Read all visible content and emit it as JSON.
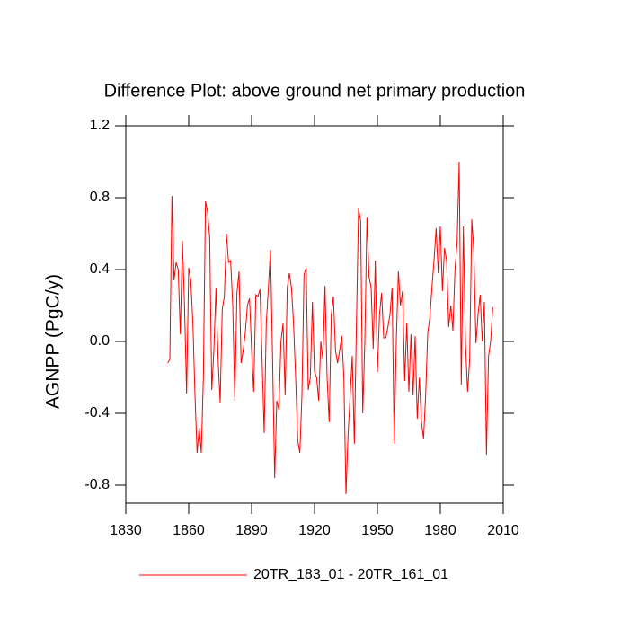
{
  "chart_data": {
    "type": "line",
    "title": "Difference Plot: above ground net primary production",
    "y_label": "AGNPP  (PgC/y)",
    "xlim": [
      1830,
      2010
    ],
    "xticks": [
      1830,
      1860,
      1890,
      1920,
      1950,
      1980,
      2010
    ],
    "ylim": [
      -0.9,
      1.2
    ],
    "yticks": [
      -0.8,
      -0.4,
      {
        "value": 0,
        "label": "0.0"
      },
      0.4,
      0.8,
      1.2
    ],
    "x": [
      1850,
      1851,
      1852,
      1853,
      1854,
      1855,
      1856,
      1857,
      1858,
      1859,
      1860,
      1861,
      1862,
      1863,
      1864,
      1865,
      1866,
      1867,
      1868,
      1869,
      1870,
      1871,
      1872,
      1873,
      1874,
      1875,
      1876,
      1877,
      1878,
      1879,
      1880,
      1881,
      1882,
      1883,
      1884,
      1885,
      1886,
      1887,
      1888,
      1889,
      1890,
      1891,
      1892,
      1893,
      1894,
      1895,
      1896,
      1897,
      1898,
      1899,
      1900,
      1901,
      1902,
      1903,
      1904,
      1905,
      1906,
      1907,
      1908,
      1909,
      1910,
      1911,
      1912,
      1913,
      1914,
      1915,
      1916,
      1917,
      1918,
      1919,
      1920,
      1921,
      1922,
      1923,
      1924,
      1925,
      1926,
      1927,
      1928,
      1929,
      1930,
      1931,
      1932,
      1933,
      1934,
      1935,
      1936,
      1937,
      1938,
      1939,
      1940,
      1941,
      1942,
      1943,
      1944,
      1945,
      1946,
      1947,
      1948,
      1949,
      1950,
      1951,
      1952,
      1953,
      1954,
      1955,
      1956,
      1957,
      1958,
      1959,
      1960,
      1961,
      1962,
      1963,
      1964,
      1965,
      1966,
      1967,
      1968,
      1969,
      1970,
      1971,
      1972,
      1973,
      1974,
      1975,
      1976,
      1977,
      1978,
      1979,
      1980,
      1981,
      1982,
      1983,
      1984,
      1985,
      1986,
      1987,
      1988,
      1989,
      1990,
      1991,
      1992,
      1993,
      1994,
      1995,
      1996,
      1997,
      1998,
      1999,
      2000,
      2001,
      2002,
      2003,
      2004,
      2005
    ],
    "series": [
      {
        "name": "20TR_183_01 - 20TR_161_01",
        "color": "#ff0000",
        "values": [
          -0.12,
          -0.1,
          0.81,
          0.34,
          0.44,
          0.4,
          0.04,
          0.56,
          0.2,
          -0.29,
          0.41,
          0.34,
          0.1,
          -0.3,
          -0.62,
          -0.48,
          -0.62,
          -0.2,
          0.78,
          0.72,
          0.58,
          -0.27,
          -0.05,
          0.3,
          -0.1,
          -0.34,
          0.18,
          0.25,
          0.6,
          0.44,
          0.45,
          0.2,
          -0.33,
          0.27,
          0.39,
          -0.12,
          -0.05,
          0.05,
          0.2,
          0.24,
          -0.05,
          -0.28,
          0.26,
          0.25,
          0.29,
          -0.1,
          -0.51,
          0.1,
          0.3,
          0.51,
          -0.1,
          -0.76,
          -0.33,
          -0.38,
          0.0,
          0.1,
          -0.3,
          0.3,
          0.38,
          0.3,
          0.1,
          -0.2,
          -0.55,
          -0.62,
          -0.3,
          0.37,
          0.41,
          -0.27,
          -0.2,
          0.22,
          -0.17,
          -0.2,
          -0.33,
          0.0,
          -0.1,
          0.31,
          -0.2,
          -0.45,
          0.15,
          0.25,
          -0.05,
          -0.12,
          -0.05,
          0.03,
          -0.2,
          -0.85,
          -0.52,
          -0.3,
          -0.08,
          -0.57,
          0.1,
          0.74,
          0.67,
          -0.4,
          0.0,
          0.69,
          0.36,
          0.3,
          -0.04,
          0.45,
          -0.17,
          0.15,
          0.27,
          0.02,
          0.02,
          0.08,
          0.15,
          0.3,
          -0.57,
          0.0,
          0.39,
          0.2,
          0.28,
          -0.22,
          0.1,
          -0.28,
          0.04,
          -0.3,
          0.03,
          -0.43,
          -0.2,
          -0.45,
          -0.54,
          -0.3,
          0.05,
          0.13,
          0.3,
          0.45,
          0.63,
          0.38,
          0.64,
          0.28,
          0.52,
          0.45,
          0.08,
          0.2,
          0.06,
          0.4,
          0.55,
          1.0,
          -0.24,
          0.64,
          -0.01,
          -0.28,
          -0.1,
          0.68,
          0.5,
          -0.01,
          0.15,
          0.26,
          0.0,
          0.22,
          -0.63,
          -0.08,
          0.0,
          0.19
        ]
      }
    ]
  }
}
